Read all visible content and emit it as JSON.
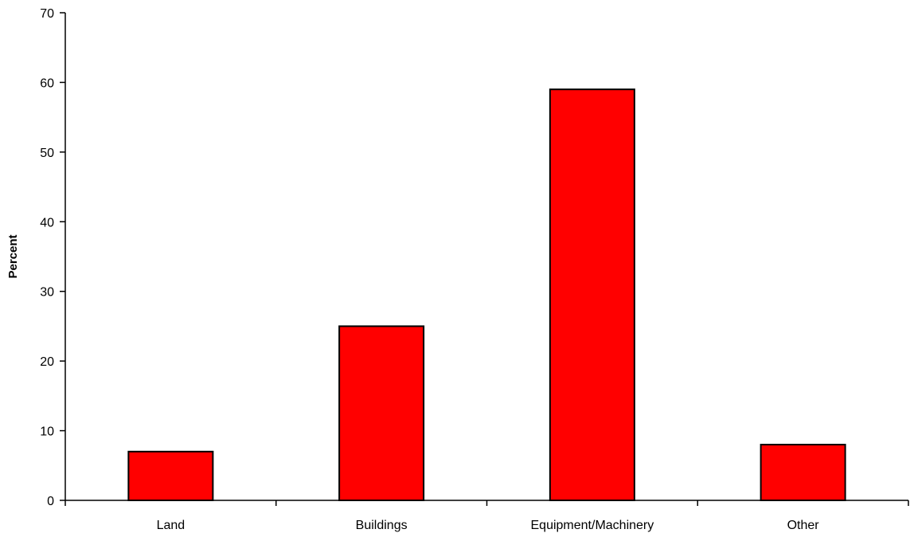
{
  "chart_data": {
    "type": "bar",
    "title": "",
    "xlabel": "",
    "ylabel": "Percent",
    "categories": [
      "Land",
      "Buildings",
      "Equipment/Machinery",
      "Other"
    ],
    "values": [
      7,
      25,
      59,
      8
    ],
    "ylim": [
      0,
      70
    ],
    "yticks": [
      0,
      10,
      20,
      30,
      40,
      50,
      60,
      70
    ],
    "grid": false,
    "legend": "none",
    "bar_color": "#ff0000",
    "bar_edge_color": "#000000"
  }
}
